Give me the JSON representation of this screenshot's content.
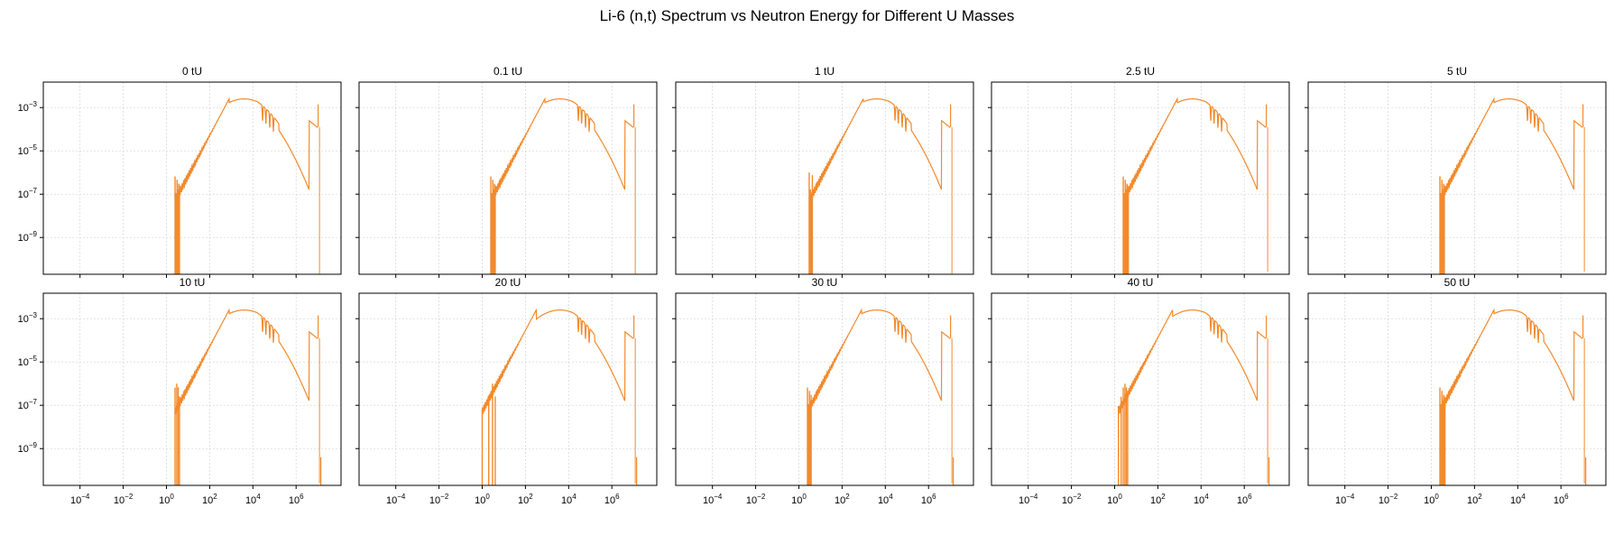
{
  "figure": {
    "title": "Li-6 (n,t) Spectrum vs Neutron Energy for Different U Masses"
  },
  "chart_data": {
    "type": "line",
    "layout": "2x5 small multiples, shared x and y axes",
    "x_scale": "log",
    "y_scale": "log",
    "xlim": [
      2e-06,
      120000000.0
    ],
    "ylim": [
      2e-11,
      0.015
    ],
    "x_ticks": [
      {
        "base": "10",
        "exp": "−4"
      },
      {
        "base": "10",
        "exp": "−2"
      },
      {
        "base": "10",
        "exp": "0"
      },
      {
        "base": "10",
        "exp": "2"
      },
      {
        "base": "10",
        "exp": "4"
      },
      {
        "base": "10",
        "exp": "6"
      }
    ],
    "x_tick_values": [
      0.0001,
      0.01,
      1,
      100,
      10000,
      1000000
    ],
    "y_ticks": [
      {
        "base": "10",
        "exp": "−3"
      },
      {
        "base": "10",
        "exp": "−5"
      },
      {
        "base": "10",
        "exp": "−7"
      },
      {
        "base": "10",
        "exp": "−9"
      }
    ],
    "y_tick_values": [
      0.001,
      1e-05,
      1e-07,
      1e-09
    ],
    "grid": true,
    "line_color": "#f28a2c",
    "panels": [
      {
        "title": "0 tU",
        "cutoff_x": 2.5,
        "spike_x": [
          2.5,
          2.8,
          3.1,
          3.4,
          3.7,
          4.0
        ],
        "tail": "low"
      },
      {
        "title": "0.1 tU",
        "cutoff_x": 2.5,
        "spike_x": [
          2.5,
          2.8,
          3.1,
          3.4,
          3.7,
          4.0
        ],
        "tail": "low"
      },
      {
        "title": "1 tU",
        "cutoff_x": 3.0,
        "spike_x": [
          3.0,
          3.4,
          3.8,
          4.2
        ],
        "tail": "low"
      },
      {
        "title": "2.5 tU",
        "cutoff_x": 2.5,
        "spike_x": [
          2.5,
          2.8,
          3.1,
          3.4,
          3.7,
          4.0,
          4.3
        ],
        "tail": "mid"
      },
      {
        "title": "5 tU",
        "cutoff_x": 2.5,
        "spike_x": [
          2.5,
          2.8,
          3.1,
          3.4,
          3.7,
          4.0
        ],
        "tail": "mid"
      },
      {
        "title": "10 tU",
        "cutoff_x": 2.5,
        "spike_x": [
          2.5,
          3.0,
          3.5,
          4.0
        ],
        "tail": "high"
      },
      {
        "title": "20 tU",
        "cutoff_x": 1.0,
        "spike_x": [
          1.0,
          2.0,
          3.0,
          4.0
        ],
        "tail": "high"
      },
      {
        "title": "30 tU",
        "cutoff_x": 2.5,
        "spike_x": [
          2.5,
          2.8,
          3.1,
          3.4,
          3.7
        ],
        "tail": "high"
      },
      {
        "title": "40 tU",
        "cutoff_x": 1.5,
        "spike_x": [
          1.5,
          2.0,
          2.5,
          3.0,
          3.5,
          4.0
        ],
        "tail": "high"
      },
      {
        "title": "50 tU",
        "cutoff_x": 2.5,
        "spike_x": [
          2.5,
          2.8,
          3.1,
          3.4,
          3.7,
          4.0,
          4.3
        ],
        "tail": "high"
      }
    ]
  }
}
